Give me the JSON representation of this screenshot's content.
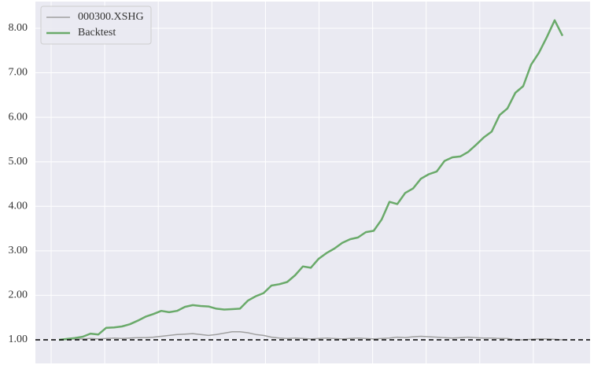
{
  "chart_data": {
    "type": "line",
    "series": [
      {
        "name": "000300.XSHG",
        "color": "#a0a0a0",
        "width": 1.5,
        "values": [
          1.0,
          1.01,
          1.02,
          1.02,
          1.03,
          1.02,
          1.03,
          1.04,
          1.03,
          1.04,
          1.05,
          1.05,
          1.06,
          1.08,
          1.1,
          1.12,
          1.13,
          1.14,
          1.12,
          1.1,
          1.12,
          1.15,
          1.18,
          1.18,
          1.16,
          1.12,
          1.1,
          1.06,
          1.04,
          1.03,
          1.04,
          1.03,
          1.02,
          1.03,
          1.04,
          1.03,
          1.02,
          1.03,
          1.04,
          1.03,
          1.02,
          1.03,
          1.04,
          1.06,
          1.05,
          1.07,
          1.08,
          1.07,
          1.06,
          1.05,
          1.04,
          1.05,
          1.06,
          1.05,
          1.04,
          1.04,
          1.03,
          1.03,
          1.0,
          1.0,
          1.01,
          1.02,
          1.02,
          1.01,
          1.0
        ]
      },
      {
        "name": "Backtest",
        "color": "#6aaa6a",
        "width": 2.5,
        "values": [
          1.0,
          1.02,
          1.04,
          1.07,
          1.14,
          1.12,
          1.27,
          1.28,
          1.3,
          1.35,
          1.43,
          1.52,
          1.58,
          1.65,
          1.62,
          1.65,
          1.74,
          1.78,
          1.76,
          1.75,
          1.7,
          1.68,
          1.69,
          1.7,
          1.88,
          1.98,
          2.05,
          2.22,
          2.25,
          2.3,
          2.45,
          2.65,
          2.62,
          2.82,
          2.95,
          3.05,
          3.18,
          3.26,
          3.3,
          3.42,
          3.45,
          3.7,
          4.1,
          4.05,
          4.3,
          4.4,
          4.62,
          4.72,
          4.78,
          5.02,
          5.1,
          5.12,
          5.22,
          5.38,
          5.55,
          5.68,
          6.05,
          6.2,
          6.55,
          6.7,
          7.18,
          7.45,
          7.8,
          8.18,
          7.83
        ]
      }
    ],
    "ylim": [
      0.47,
      8.6
    ],
    "yticks": [
      {
        "value": 1,
        "label": "1.00"
      },
      {
        "value": 2,
        "label": "2.00"
      },
      {
        "value": 3,
        "label": "3.00"
      },
      {
        "value": 4,
        "label": "4.00"
      },
      {
        "value": 5,
        "label": "5.00"
      },
      {
        "value": 6,
        "label": "6.00"
      },
      {
        "value": 7,
        "label": "7.00"
      },
      {
        "value": 8,
        "label": "8.00"
      }
    ],
    "hline": 1,
    "grid": true,
    "legend": "upper left",
    "background": "#eaeaf2"
  }
}
